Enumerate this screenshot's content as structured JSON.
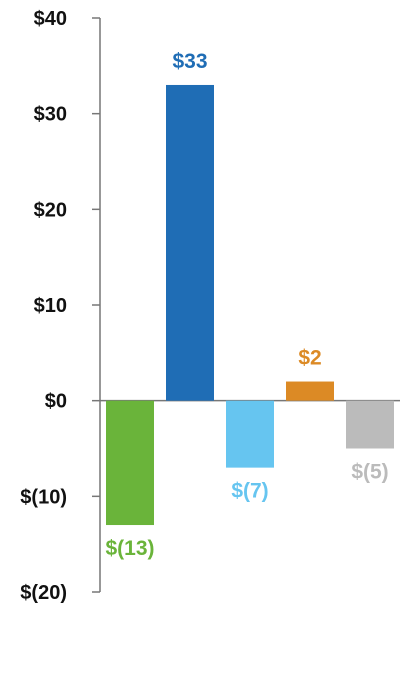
{
  "chart_data": {
    "type": "bar",
    "title": "",
    "xlabel": "",
    "ylabel": "",
    "ylim": [
      -20,
      40
    ],
    "yticks": [
      40,
      30,
      20,
      10,
      0,
      -10,
      -20
    ],
    "ytick_labels": [
      "$40",
      "$30",
      "$20",
      "$10",
      "$0",
      "$(10)",
      "$(20)"
    ],
    "grid": false,
    "legend": "none",
    "values": [
      -13,
      33,
      -7,
      2,
      -5
    ],
    "data_labels": [
      "$(13)",
      "$33",
      "$(7)",
      "$2",
      "$(5)"
    ],
    "colors": [
      "#6ab43a",
      "#1f6db5",
      "#66c5f0",
      "#dc8a25",
      "#bbbbbb"
    ]
  }
}
